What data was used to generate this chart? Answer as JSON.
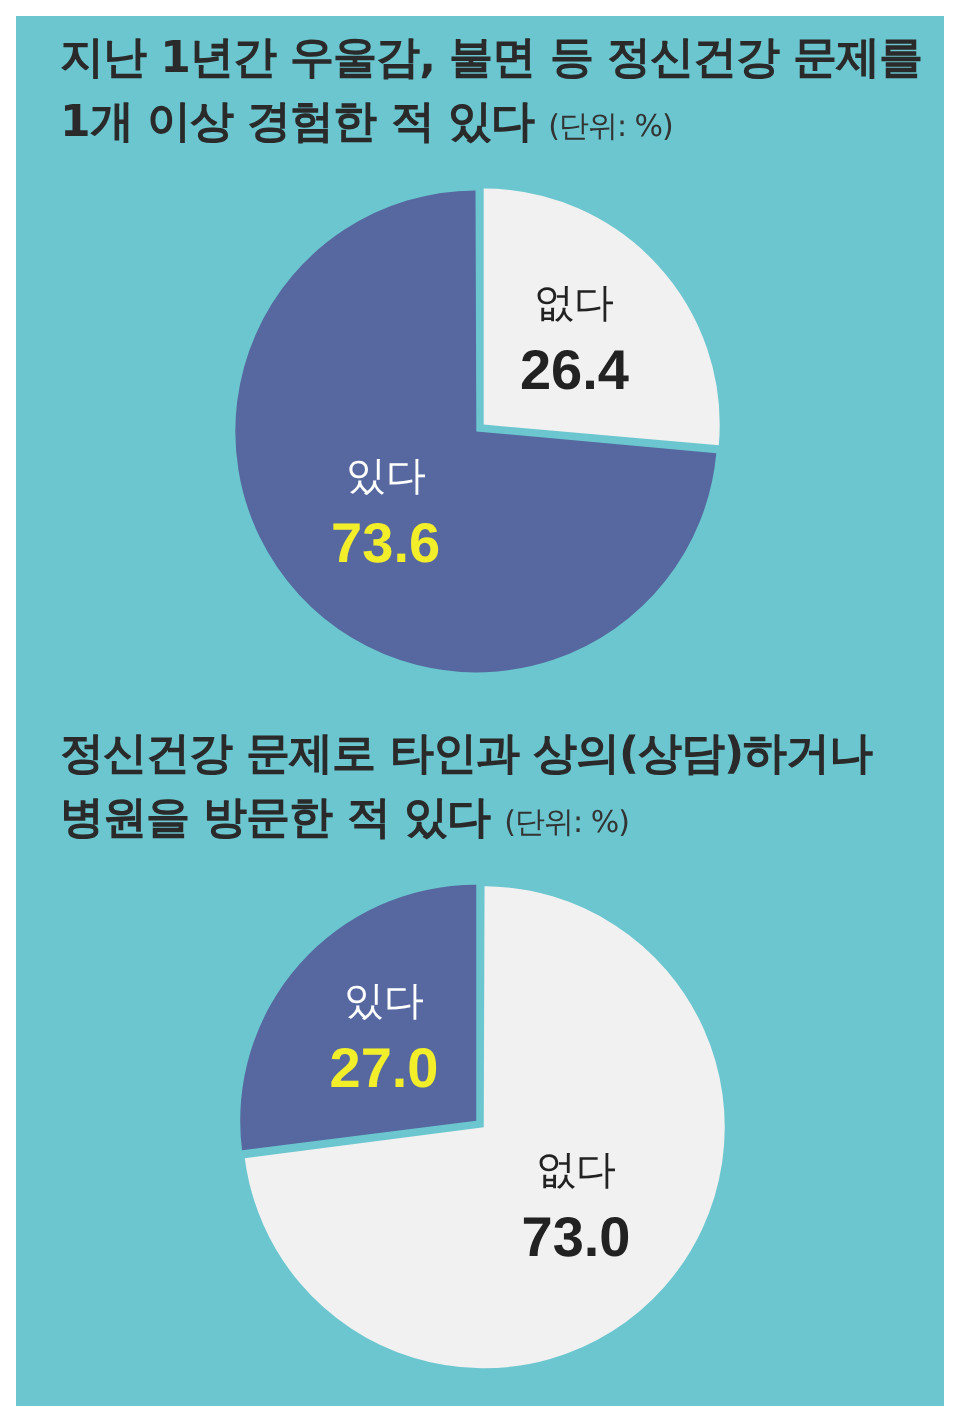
{
  "chart_data": [
    {
      "type": "pie",
      "title": "지난 1년간 우울감, 불면 등 정신건강 문제를 1개 이상 경험한 적 있다",
      "subtitle": "(단위: %)",
      "categories": [
        "없다",
        "있다"
      ],
      "values": [
        26.4,
        73.6
      ],
      "colors": [
        "#f1f1f1",
        "#56689f"
      ],
      "value_labels": [
        "26.4",
        "73.6"
      ]
    },
    {
      "type": "pie",
      "title": "정신건강 문제로 타인과 상의(상담)하거나 병원을 방문한 적 있다",
      "subtitle": "(단위: %)",
      "categories": [
        "없다",
        "있다"
      ],
      "values": [
        73.0,
        27.0
      ],
      "colors": [
        "#f1f1f1",
        "#56689f"
      ],
      "value_labels": [
        "73.0",
        "27.0"
      ]
    }
  ]
}
